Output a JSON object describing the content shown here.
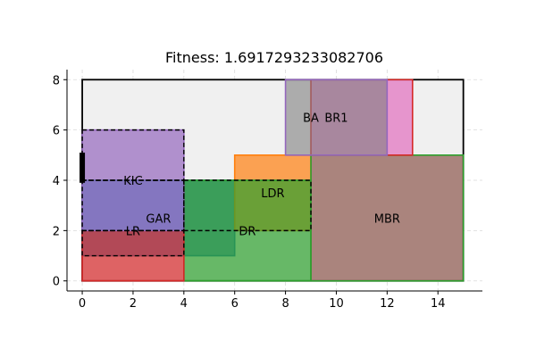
{
  "chart_data": {
    "type": "floorplan",
    "title": "Fitness: 1.6917293233082706",
    "xlim": [
      -0.6,
      15.75
    ],
    "ylim": [
      -0.4,
      8.4
    ],
    "xticks": [
      0,
      2,
      4,
      6,
      8,
      10,
      12,
      14
    ],
    "yticks": [
      0,
      2,
      4,
      6,
      8
    ],
    "grid": true,
    "boundary": {
      "x": [
        0,
        15
      ],
      "y": [
        0,
        8
      ],
      "fill": "#f0f0f0",
      "stroke": "#000000"
    },
    "rooms": [
      {
        "name": "Bedroom-A blue",
        "label": "",
        "x": [
          0,
          6
        ],
        "y": [
          1,
          4
        ],
        "fill": "#1f77b4",
        "stroke": "#1f77b4",
        "dashed": false,
        "opacity": 0.7
      },
      {
        "name": "Orange",
        "label": "",
        "x": [
          6,
          9
        ],
        "y": [
          2,
          5
        ],
        "fill": "#ff7f0e",
        "stroke": "#ff7f0e",
        "dashed": false,
        "opacity": 0.7
      },
      {
        "name": "DR",
        "label": "DR",
        "x": [
          4,
          9
        ],
        "y": [
          0,
          4
        ],
        "fill": "#2ca02c",
        "stroke": "#2ca02c",
        "dashed": false,
        "opacity": 0.7
      },
      {
        "name": "Red",
        "label": "",
        "x": [
          0,
          4
        ],
        "y": [
          0,
          2
        ],
        "fill": "#d62728",
        "stroke": "#d62728",
        "dashed": false,
        "opacity": 0.7
      },
      {
        "name": "Purple",
        "label": "",
        "x": [
          0,
          4
        ],
        "y": [
          2,
          6
        ],
        "fill": "#9467bd",
        "stroke": "#9467bd",
        "dashed": false,
        "opacity": 0.7
      },
      {
        "name": "MBR",
        "label": "MBR",
        "x": [
          9,
          15
        ],
        "y": [
          0,
          5
        ],
        "fill": "#8c564b",
        "stroke": "#2ca02c",
        "dashed": false,
        "opacity": 0.7
      },
      {
        "name": "BR1",
        "label": "BR1",
        "x": [
          9,
          13
        ],
        "y": [
          5,
          8
        ],
        "fill": "#e377c2",
        "stroke": "#d62728",
        "dashed": false,
        "opacity": 0.75
      },
      {
        "name": "BA",
        "label": "BA",
        "x": [
          8,
          12
        ],
        "y": [
          5,
          8
        ],
        "fill": "#7f7f7f",
        "stroke": "#9467bd",
        "dashed": false,
        "opacity": 0.6
      },
      {
        "name": "LR",
        "label": "LR",
        "x": [
          0,
          4
        ],
        "y": [
          1,
          2
        ],
        "fill": "none",
        "stroke": "#000000",
        "dashed": true,
        "opacity": 1
      },
      {
        "name": "GAR",
        "label": "GAR",
        "x": [
          0,
          4
        ],
        "y": [
          2,
          4
        ],
        "fill": "none",
        "stroke": "#000000",
        "dashed": true,
        "opacity": 1
      },
      {
        "name": "KIC",
        "label": "KIC",
        "x": [
          0,
          4
        ],
        "y": [
          4,
          6
        ],
        "fill": "none",
        "stroke": "#000000",
        "dashed": true,
        "opacity": 1
      },
      {
        "name": "LDR",
        "label": "LDR",
        "x": [
          4,
          9
        ],
        "y": [
          2,
          4
        ],
        "fill": "none",
        "stroke": "#000000",
        "dashed": true,
        "opacity": 1
      }
    ],
    "labels": [
      {
        "text": "BA",
        "x": 9,
        "y": 6.5
      },
      {
        "text": "BR1",
        "x": 10,
        "y": 6.5
      },
      {
        "text": "KIC",
        "x": 2,
        "y": 4
      },
      {
        "text": "LDR",
        "x": 7.5,
        "y": 3.5
      },
      {
        "text": "GAR",
        "x": 3,
        "y": 2.5
      },
      {
        "text": "LR",
        "x": 2,
        "y": 2
      },
      {
        "text": "DR",
        "x": 6.5,
        "y": 2
      },
      {
        "text": "MBR",
        "x": 12,
        "y": 2.5
      }
    ],
    "door": {
      "x": 0,
      "y": [
        3.9,
        5.1
      ],
      "color": "#000000"
    }
  }
}
